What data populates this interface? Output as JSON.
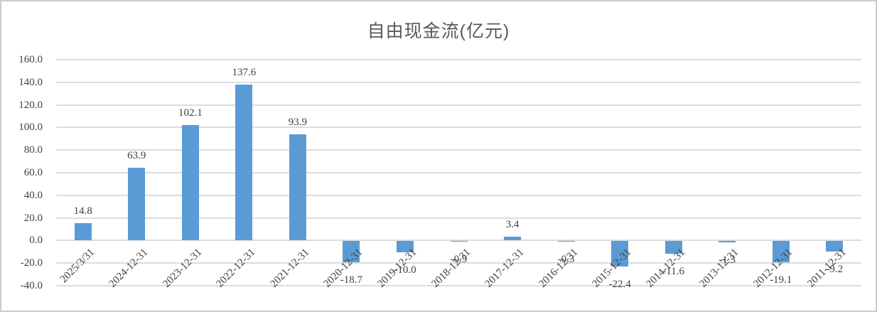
{
  "chart_data": {
    "type": "bar",
    "title": "自由现金流(亿元)",
    "categories": [
      "2025/3/31",
      "2024-12-31",
      "2023-12-31",
      "2022-12-31",
      "2021-12-31",
      "2020-12-31",
      "2019-12-31",
      "2018-12-31",
      "2017-12-31",
      "2016-12-31",
      "2015-12-31",
      "2014-12-31",
      "2013-12-31",
      "2012-12-31",
      "2011-12-31"
    ],
    "values": [
      14.8,
      63.9,
      102.1,
      137.6,
      93.9,
      -18.7,
      -10.0,
      -0.9,
      3.4,
      -0.3,
      -22.4,
      -11.6,
      -1.3,
      -19.1,
      -9.2
    ],
    "data_labels": [
      "14.8",
      "63.9",
      "102.1",
      "137.6",
      "93.9",
      "-18.7",
      "-10.0",
      "-0.9",
      "3.4",
      "-0.3",
      "-22.4",
      "-11.6",
      "-1.3",
      "-19.1",
      "-9.2"
    ],
    "xlabel": "",
    "ylabel": "",
    "ylim": [
      -40,
      160
    ],
    "ytick_step": 20,
    "ytick_labels": [
      "160.0",
      "140.0",
      "120.0",
      "100.0",
      "80.0",
      "60.0",
      "40.0",
      "20.0",
      "0.0",
      "-20.0",
      "-40.0"
    ],
    "grid": true,
    "legend": false,
    "colors": {
      "bar": "#5B9BD5",
      "gridline": "#DCDCDC",
      "title": "#595959",
      "axis_label": "#404040",
      "data_label": "#404040",
      "border": "#CCCCCC",
      "background": "#FFFFFF"
    }
  }
}
